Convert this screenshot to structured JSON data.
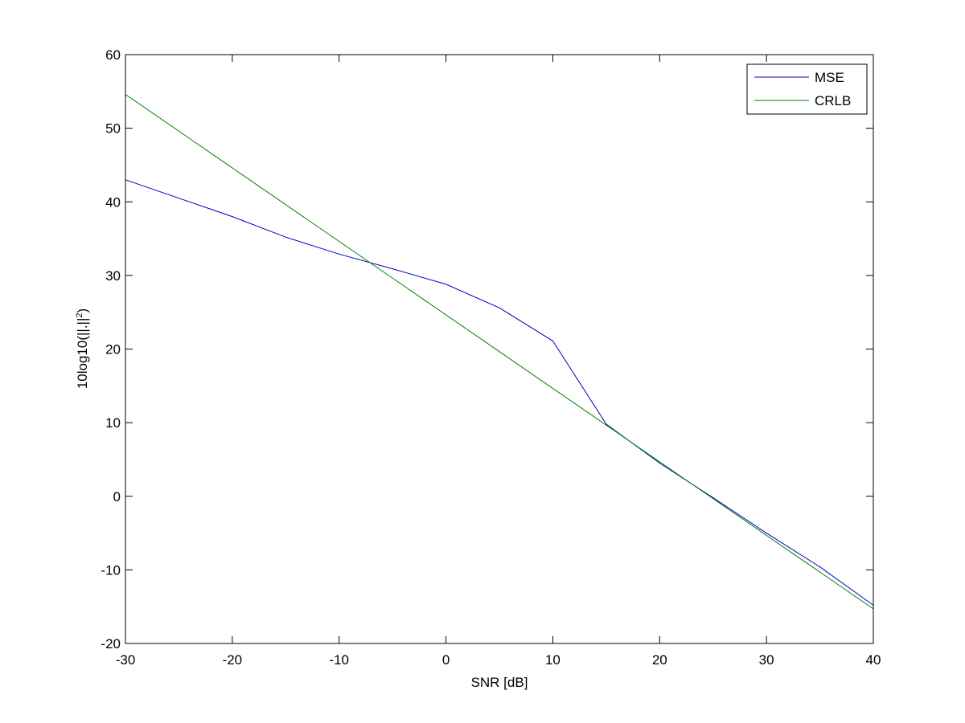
{
  "chart_data": {
    "type": "line",
    "title": "",
    "xlabel": "SNR [dB]",
    "ylabel_main": "10log10(||.||",
    "ylabel_sup": "2",
    "ylabel_tail": ")",
    "xlim": [
      -30,
      40
    ],
    "ylim": [
      -20,
      60
    ],
    "xticks": [
      -30,
      -20,
      -10,
      0,
      10,
      20,
      30,
      40
    ],
    "xtick_labels": [
      "-30",
      "-20",
      "-10",
      "0",
      "10",
      "20",
      "30",
      "40"
    ],
    "yticks": [
      -20,
      -10,
      0,
      10,
      20,
      30,
      40,
      50,
      60
    ],
    "ytick_labels": [
      "-20",
      "-10",
      "0",
      "10",
      "20",
      "30",
      "40",
      "50",
      "60"
    ],
    "grid": false,
    "legend_position": "top-right",
    "series": [
      {
        "name": "MSE",
        "color": "#0000c8",
        "x": [
          -30,
          -25,
          -20,
          -15,
          -10,
          -5,
          0,
          5,
          10,
          15,
          20,
          25,
          30,
          35,
          40
        ],
        "y": [
          43.0,
          40.5,
          38.0,
          35.2,
          32.9,
          30.9,
          28.8,
          25.6,
          21.1,
          9.8,
          4.5,
          -0.2,
          -5.0,
          -9.6,
          -14.8
        ]
      },
      {
        "name": "CRLB",
        "color": "#008000",
        "x": [
          -30,
          40
        ],
        "y": [
          54.6,
          -15.3
        ]
      }
    ]
  }
}
